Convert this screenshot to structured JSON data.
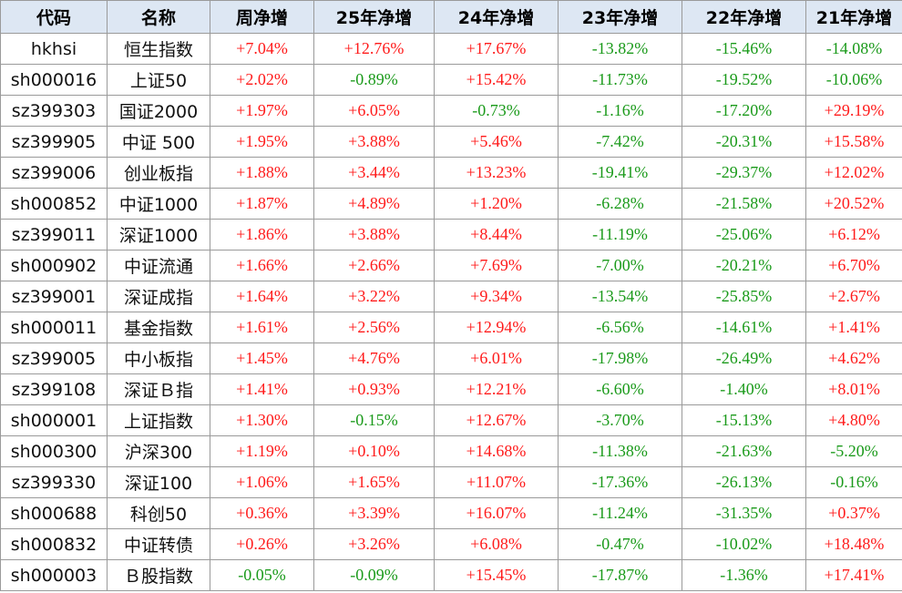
{
  "table": {
    "header": [
      "代码",
      "名称",
      "周净增",
      "25年净增",
      "24年净增",
      "23年净增",
      "22年净增",
      "21年净增"
    ],
    "rows": [
      [
        "hkhsi",
        "恒生指数",
        "+7.04%",
        "+12.76%",
        "+17.67%",
        "-13.82%",
        "-15.46%",
        "-14.08%"
      ],
      [
        "sh000016",
        "上证50",
        "+2.02%",
        "-0.89%",
        "+15.42%",
        "-11.73%",
        "-19.52%",
        "-10.06%"
      ],
      [
        "sz399303",
        "国证2000",
        "+1.97%",
        "+6.05%",
        "-0.73%",
        "-1.16%",
        "-17.20%",
        "+29.19%"
      ],
      [
        "sz399905",
        "中证 500",
        "+1.95%",
        "+3.88%",
        "+5.46%",
        "-7.42%",
        "-20.31%",
        "+15.58%"
      ],
      [
        "sz399006",
        "创业板指",
        "+1.88%",
        "+3.44%",
        "+13.23%",
        "-19.41%",
        "-29.37%",
        "+12.02%"
      ],
      [
        "sh000852",
        "中证1000",
        "+1.87%",
        "+4.89%",
        "+1.20%",
        "-6.28%",
        "-21.58%",
        "+20.52%"
      ],
      [
        "sz399011",
        "深证1000",
        "+1.86%",
        "+3.88%",
        "+8.44%",
        "-11.19%",
        "-25.06%",
        "+6.12%"
      ],
      [
        "sh000902",
        "中证流通",
        "+1.66%",
        "+2.66%",
        "+7.69%",
        "-7.00%",
        "-20.21%",
        "+6.70%"
      ],
      [
        "sz399001",
        "深证成指",
        "+1.64%",
        "+3.22%",
        "+9.34%",
        "-13.54%",
        "-25.85%",
        "+2.67%"
      ],
      [
        "sh000011",
        "基金指数",
        "+1.61%",
        "+2.56%",
        "+12.94%",
        "-6.56%",
        "-14.61%",
        "+1.41%"
      ],
      [
        "sz399005",
        "中小板指",
        "+1.45%",
        "+4.76%",
        "+6.01%",
        "-17.98%",
        "-26.49%",
        "+4.62%"
      ],
      [
        "sz399108",
        "深证Ｂ指",
        "+1.41%",
        "+0.93%",
        "+12.21%",
        "-6.60%",
        "-1.40%",
        "+8.01%"
      ],
      [
        "sh000001",
        "上证指数",
        "+1.30%",
        "-0.15%",
        "+12.67%",
        "-3.70%",
        "-15.13%",
        "+4.80%"
      ],
      [
        "sh000300",
        "沪深300",
        "+1.19%",
        "+0.10%",
        "+14.68%",
        "-11.38%",
        "-21.63%",
        "-5.20%"
      ],
      [
        "sz399330",
        "深证100",
        "+1.06%",
        "+1.65%",
        "+11.07%",
        "-17.36%",
        "-26.13%",
        "-0.16%"
      ],
      [
        "sh000688",
        "科创50",
        "+0.36%",
        "+3.39%",
        "+16.07%",
        "-11.24%",
        "-31.35%",
        "+0.37%"
      ],
      [
        "sh000832",
        "中证转债",
        "+0.26%",
        "+3.26%",
        "+6.08%",
        "-0.47%",
        "-10.02%",
        "+18.48%"
      ],
      [
        "sh000003",
        "Ｂ股指数",
        "-0.05%",
        "-0.09%",
        "+15.45%",
        "-17.87%",
        "-1.36%",
        "+17.41%"
      ]
    ]
  }
}
